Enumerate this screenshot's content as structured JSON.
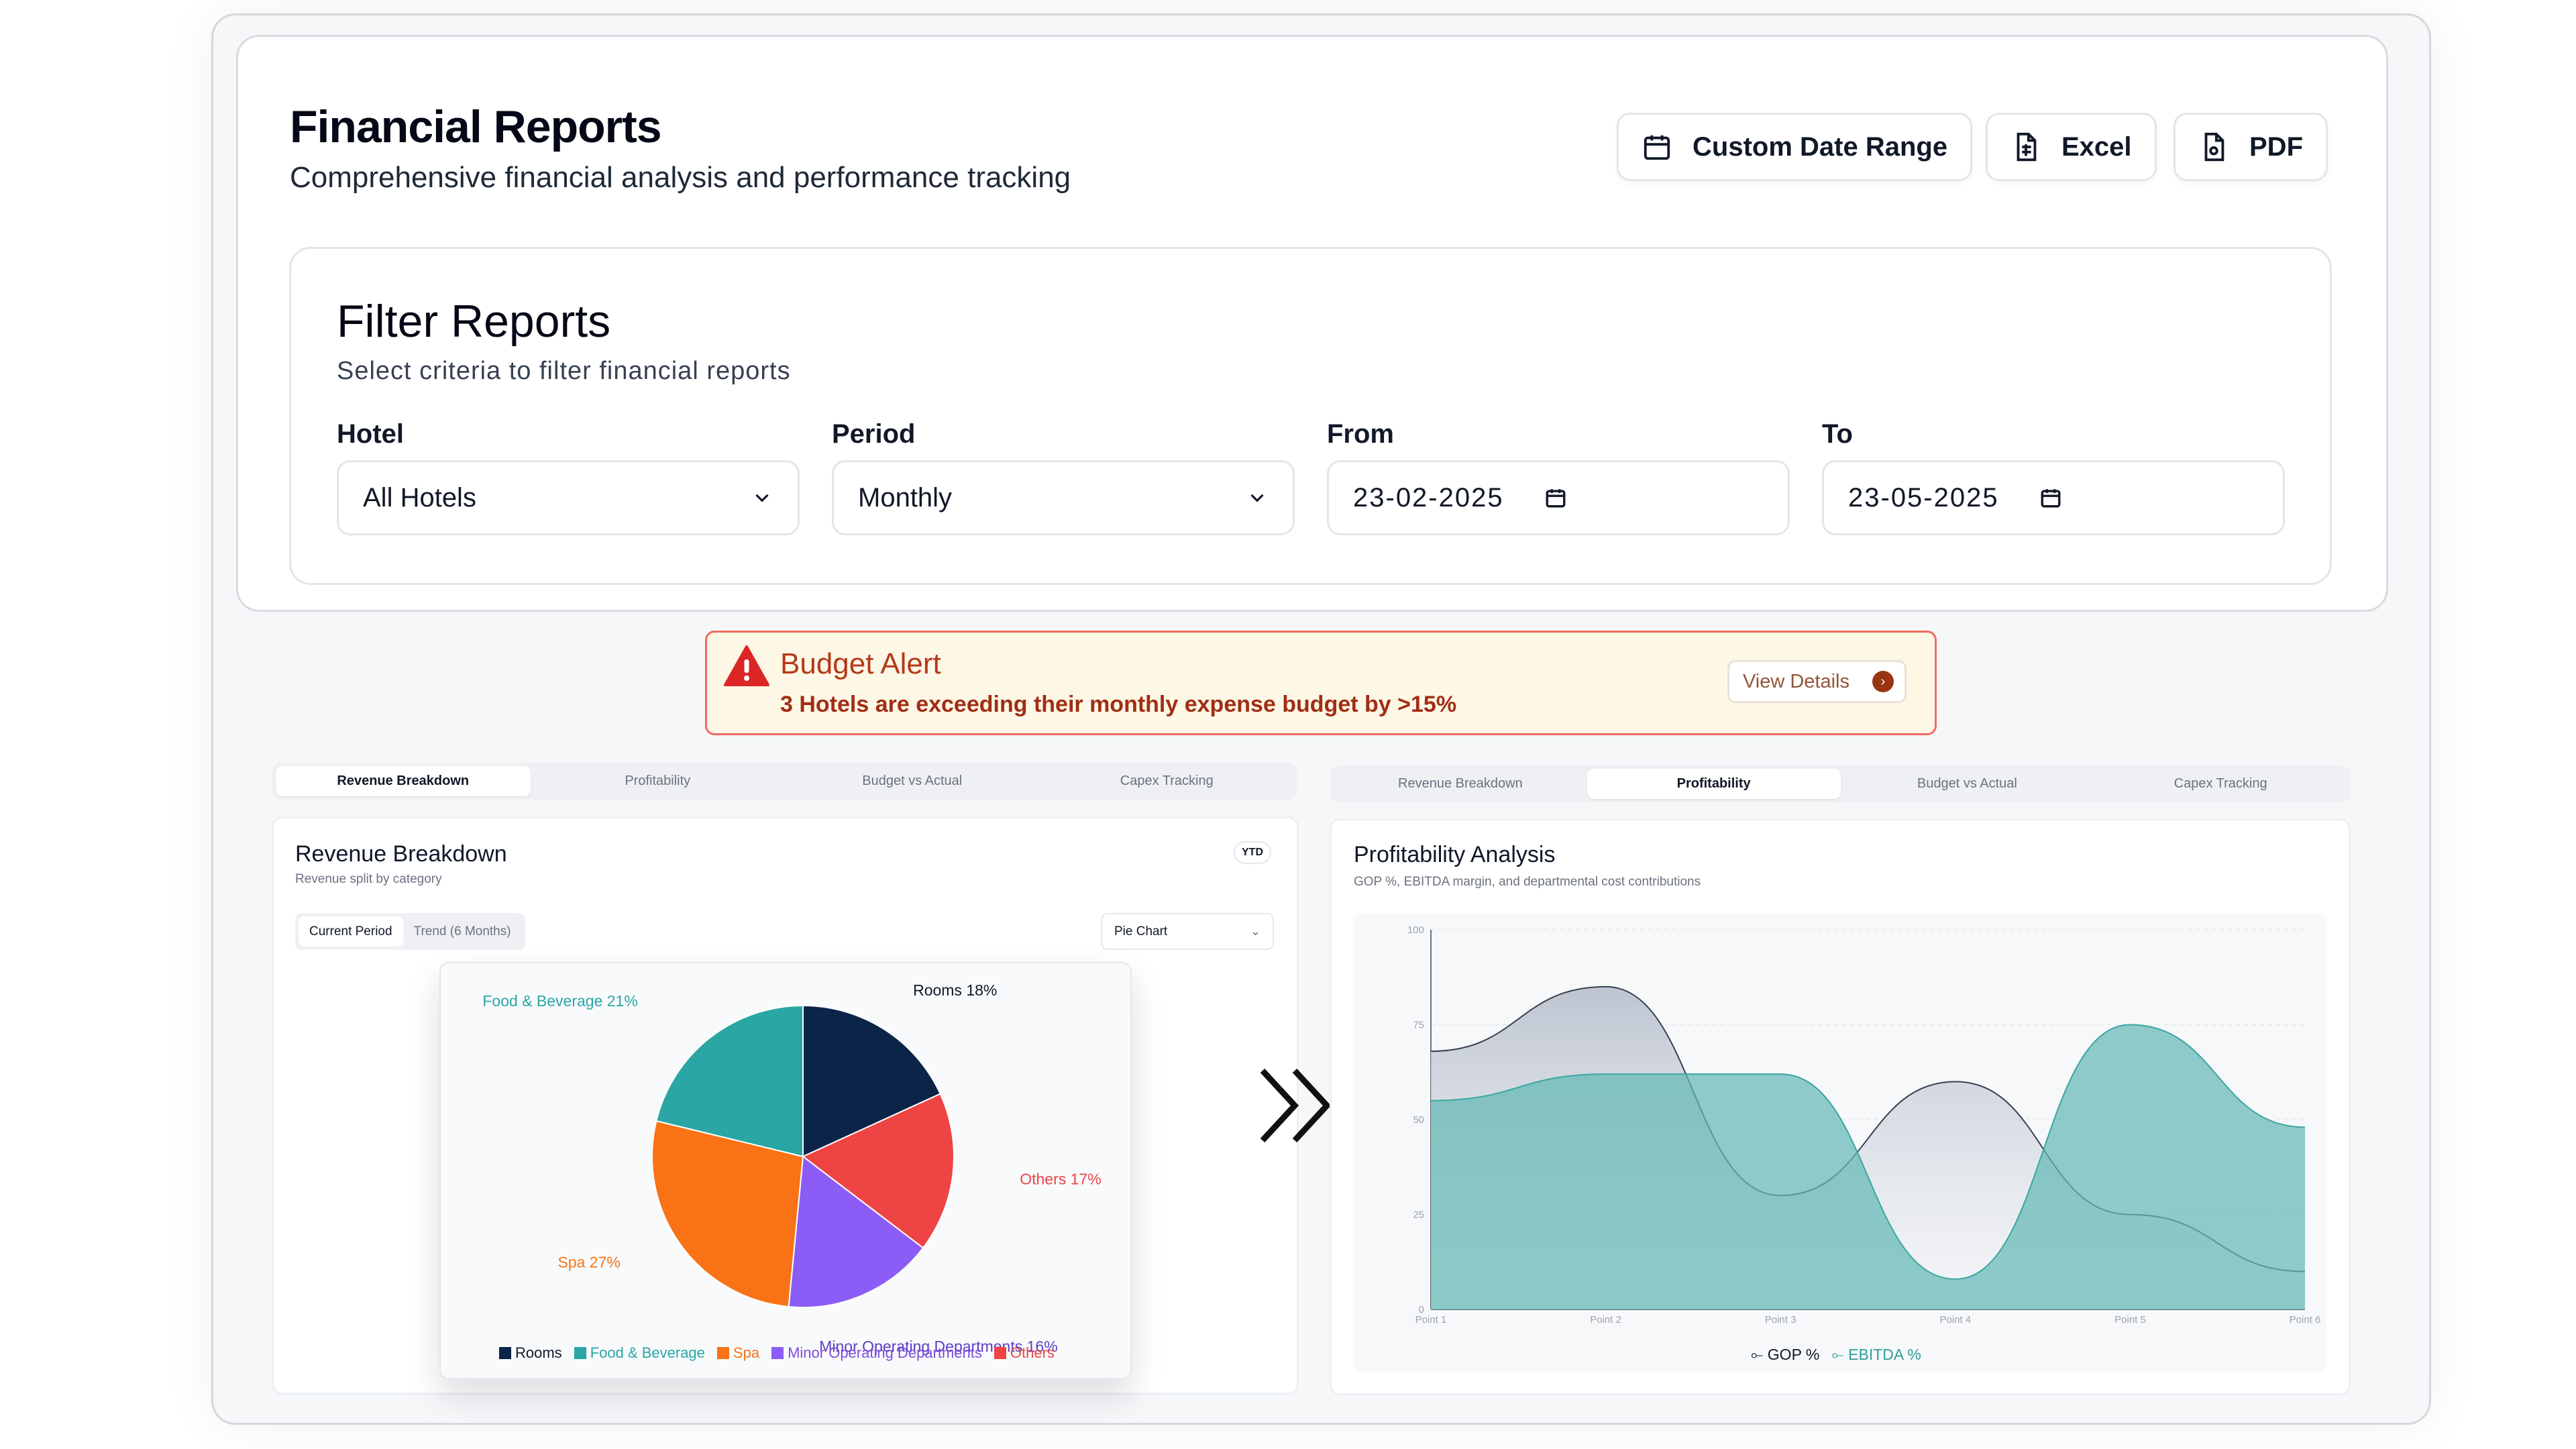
{
  "header": {
    "title": "Financial Reports",
    "subtitle": "Comprehensive financial analysis and performance tracking",
    "buttons": {
      "date_range": "Custom Date Range",
      "excel": "Excel",
      "pdf": "PDF"
    }
  },
  "filters": {
    "title": "Filter Reports",
    "subtitle": "Select criteria to filter financial reports",
    "hotel": {
      "label": "Hotel",
      "value": "All Hotels"
    },
    "period": {
      "label": "Period",
      "value": "Monthly"
    },
    "from": {
      "label": "From",
      "value": "23-02-2025"
    },
    "to": {
      "label": "To",
      "value": "23-05-2025"
    }
  },
  "alert": {
    "title": "Budget Alert",
    "message": "3 Hotels are exceeding their monthly expense budget by >15%",
    "button": "View Details"
  },
  "tabs": [
    "Revenue Breakdown",
    "Profitability",
    "Budget vs Actual",
    "Capex Tracking"
  ],
  "left_panel": {
    "active_tab": 0,
    "title": "Revenue Breakdown",
    "subtitle": "Revenue split by category",
    "badge": "YTD",
    "segments": [
      "Current Period",
      "Trend (6 Months)"
    ],
    "active_segment": 0,
    "chart_select": "Pie Chart"
  },
  "right_panel": {
    "active_tab": 1,
    "title": "Profitability Analysis",
    "subtitle": "GOP %, EBITDA margin, and departmental cost contributions"
  },
  "colors": {
    "rooms": "#0b2447",
    "food": "#2aa6a4",
    "spa": "#f97316",
    "minor": "#8b5cf6",
    "others": "#ef4444",
    "gop": "#4b5563",
    "ebitda": "#64b9b5",
    "alert_red": "#dc2626"
  },
  "chart_data": [
    {
      "type": "pie",
      "title": "",
      "categories": [
        "Rooms",
        "Food & Beverage",
        "Spa",
        "Minor Operating Departments",
        "Others"
      ],
      "values": [
        18,
        21,
        27,
        16,
        17
      ],
      "labels": [
        "Rooms 18%",
        "Food & Beverage 21%",
        "Spa 27%",
        "Minor Operating Departments 16%",
        "Others 17%"
      ],
      "legend": "bottom"
    },
    {
      "type": "area",
      "title": "",
      "categories": [
        "Point 1",
        "Point 2",
        "Point 3",
        "Point 4",
        "Point 5",
        "Point 6"
      ],
      "ylim": [
        0,
        100
      ],
      "yticks": [
        0,
        25,
        50,
        75,
        100
      ],
      "grid": true,
      "legend": "bottom",
      "series": [
        {
          "name": "GOP %",
          "values": [
            68,
            85,
            30,
            60,
            25,
            10
          ]
        },
        {
          "name": "EBITDA %",
          "values": [
            55,
            62,
            62,
            8,
            75,
            48
          ]
        }
      ]
    }
  ]
}
